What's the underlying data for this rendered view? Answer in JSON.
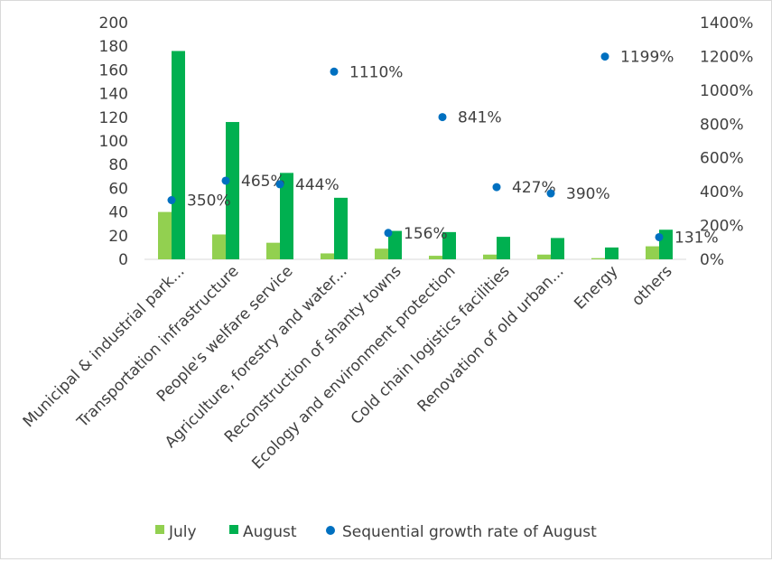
{
  "chart_data": {
    "type": "bar",
    "categories": [
      "Municipal & industrial park...",
      "Transportation infrastructure",
      "People's welfare service",
      "Agriculture, forestry and water...",
      "Reconstruction of shanty towns",
      "Ecology and environment protection",
      "Cold chain logistics facilities",
      "Renovation of old urban...",
      "Energy",
      "others"
    ],
    "series": [
      {
        "name": "July",
        "type": "bar",
        "axis": "left",
        "color": "#92d050",
        "values": [
          40,
          21,
          14,
          5,
          9,
          3,
          4,
          4,
          1,
          11
        ]
      },
      {
        "name": "August",
        "type": "bar",
        "axis": "left",
        "color": "#00b050",
        "values": [
          176,
          116,
          73,
          52,
          24,
          23,
          19,
          18,
          10,
          25
        ]
      },
      {
        "name": "Sequential growth rate of August",
        "type": "scatter",
        "axis": "right",
        "color": "#0070c0",
        "values": [
          350,
          465,
          444,
          1110,
          156,
          841,
          427,
          390,
          1199,
          131
        ],
        "labels": [
          "350%",
          "465%",
          "444%",
          "1110%",
          "156%",
          "841%",
          "427%",
          "390%",
          "1199%",
          "131%"
        ]
      }
    ],
    "y_left": {
      "ticks": [
        "0",
        "20",
        "40",
        "60",
        "80",
        "100",
        "120",
        "140",
        "160",
        "180",
        "200"
      ],
      "range": [
        0,
        200
      ]
    },
    "y_right": {
      "ticks": [
        "0%",
        "200%",
        "400%",
        "600%",
        "800%",
        "1000%",
        "1200%",
        "1400%"
      ],
      "range": [
        0,
        1400
      ]
    },
    "grid": false,
    "legend_position": "bottom"
  },
  "legend": {
    "items": [
      {
        "label": "July",
        "color": "#92d050",
        "marker": "square"
      },
      {
        "label": "August",
        "color": "#00b050",
        "marker": "square"
      },
      {
        "label": "Sequential growth rate of August",
        "color": "#0070c0",
        "marker": "circle"
      }
    ]
  }
}
